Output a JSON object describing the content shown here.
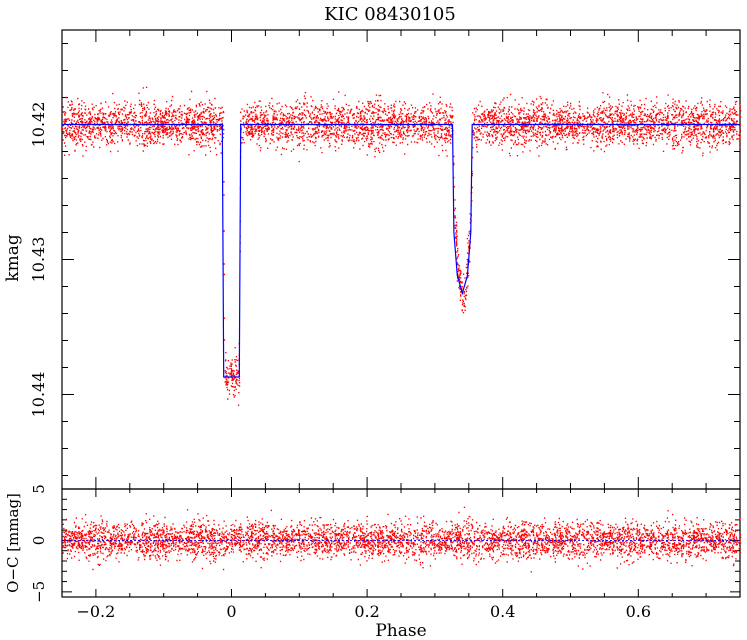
{
  "chart_data": [
    {
      "type": "scatter",
      "title": "KIC 08430105",
      "xlabel": "Phase",
      "ylabel": "kmag",
      "xlim": [
        -0.25,
        0.75
      ],
      "ylim": [
        10.447,
        10.413
      ],
      "y_inverted": true,
      "x_ticks": [
        -0.2,
        0.0,
        0.2,
        0.4,
        0.6
      ],
      "x_tick_labels": [
        "−0.2",
        "0",
        "0.2",
        "0.4",
        "0.6"
      ],
      "y_ticks": [
        10.42,
        10.43,
        10.44
      ],
      "y_tick_labels": [
        "10.42",
        "10.43",
        "10.44"
      ],
      "series": [
        {
          "kind": "observed",
          "color": "#ff0000",
          "baseline": 10.42,
          "scatter_sigma": 0.0007,
          "primary_eclipse": {
            "start": -0.0125,
            "end": 0.0125,
            "depth_mag": 10.4385,
            "ingress": 0.0015
          },
          "secondary_eclipse": {
            "start": 0.326,
            "end": 0.355,
            "center": 0.3405,
            "depth_mag": 10.4325
          }
        },
        {
          "kind": "model",
          "color": "#0000ff",
          "points": [
            [
              -0.25,
              10.42
            ],
            [
              -0.0135,
              10.42
            ],
            [
              -0.0115,
              10.4387
            ],
            [
              0.0115,
              10.4387
            ],
            [
              0.0135,
              10.42
            ],
            [
              0.326,
              10.42
            ],
            [
              0.328,
              10.428
            ],
            [
              0.333,
              10.4312
            ],
            [
              0.3405,
              10.4325
            ],
            [
              0.348,
              10.4312
            ],
            [
              0.353,
              10.428
            ],
            [
              0.355,
              10.42
            ],
            [
              0.75,
              10.42
            ]
          ]
        }
      ]
    },
    {
      "type": "scatter",
      "xlabel": "Phase",
      "ylabel": "O−C [mmag]",
      "xlim": [
        -0.25,
        0.75
      ],
      "ylim": [
        -5.5,
        5
      ],
      "y_ticks": [
        5,
        0,
        -5
      ],
      "y_tick_labels": [
        "5",
        "0",
        "−5"
      ],
      "series": [
        {
          "kind": "residuals",
          "color": "#ff0000",
          "sigma_mmag": 0.75
        }
      ]
    }
  ]
}
